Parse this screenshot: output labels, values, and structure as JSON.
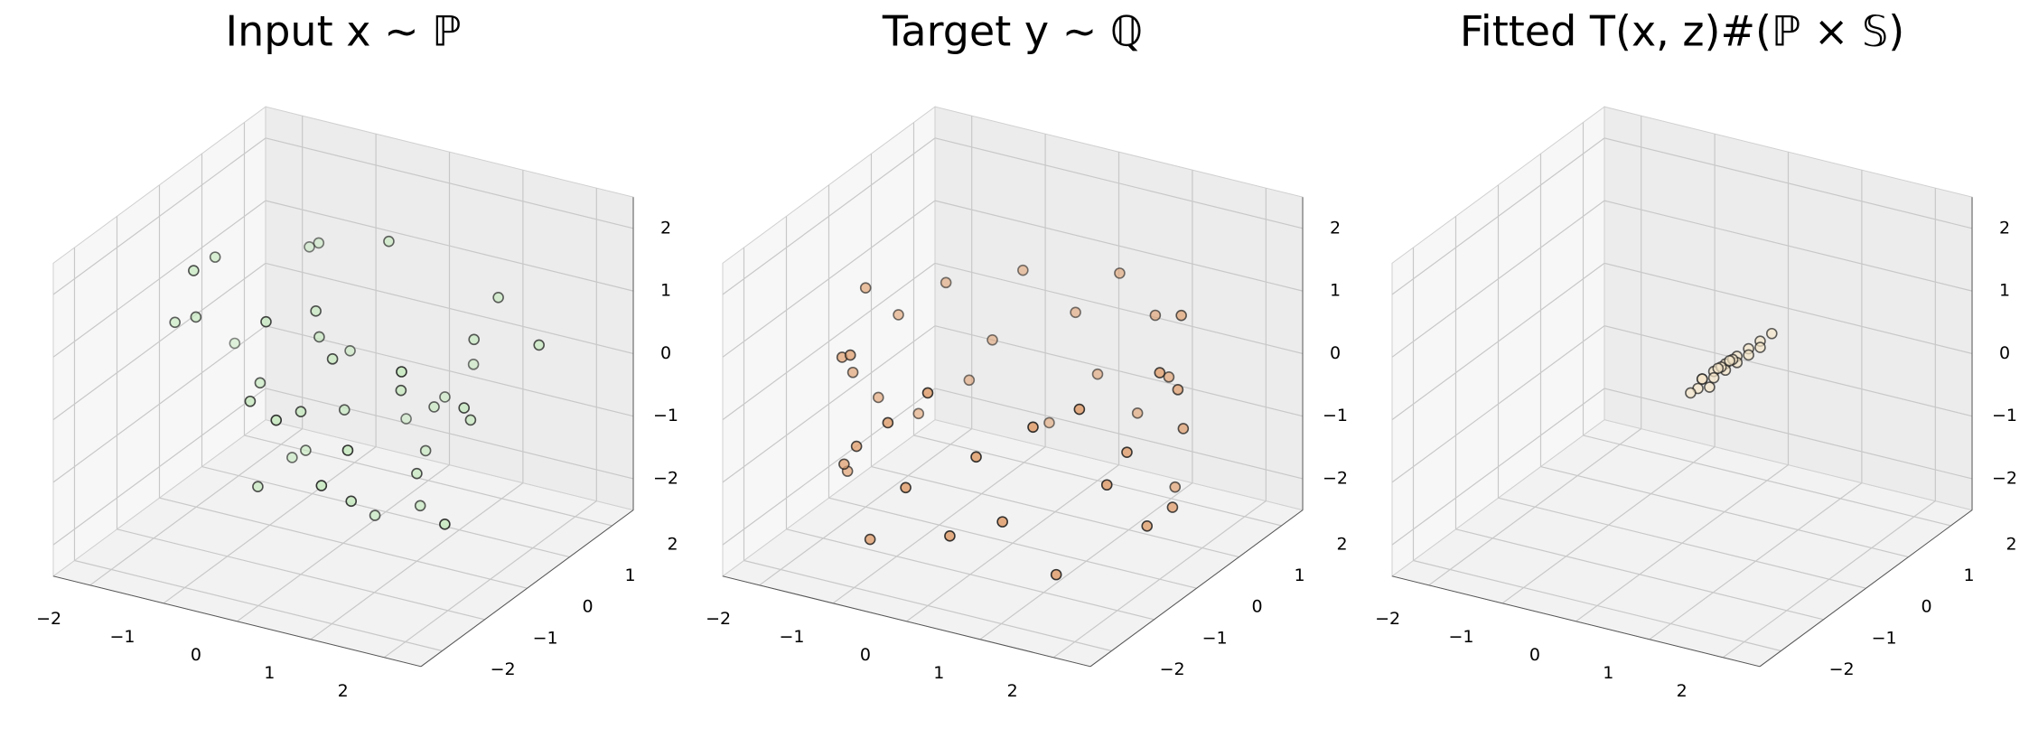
{
  "chart_data": [
    {
      "type": "scatter3d",
      "title": "Input x ∼ ℙ",
      "color": "#c7e9c0",
      "edgecolor": "#1a1a1a",
      "x": [
        -0.5,
        0.8,
        -1.2,
        1.5,
        0.2,
        -0.3,
        1.1,
        -1.8,
        0.6,
        -0.9,
        0.1,
        1.9,
        -0.4,
        0.7,
        -1.5,
        0.3,
        -0.1,
        1.3,
        -0.7,
        0.9,
        -2.0,
        0.4,
        -1.1,
        1.6,
        0.0,
        -0.6,
        1.0,
        -1.4,
        0.5,
        2.2,
        -0.2,
        0.8,
        -0.8,
        1.2,
        -1.6,
        0.2,
        -2.4,
        1.7,
        -0.3,
        0.6
      ],
      "y": [
        0.3,
        -1.2,
        1.5,
        0.4,
        -0.6,
        2.0,
        -1.8,
        0.1,
        1.1,
        -0.4,
        0.9,
        -0.9,
        -1.5,
        0.6,
        1.8,
        -2.1,
        0.2,
        1.4,
        -0.8,
        -0.2,
        -0.5,
        1.7,
        0.7,
        -1.4,
        -1.0,
        1.2,
        0.0,
        -1.1,
        2.2,
        0.8,
        -0.3,
        -1.9,
        0.5,
        1.0,
        -0.7,
        0.4,
        1.6,
        -0.1,
        -1.3,
        0.9
      ],
      "z": [
        0.5,
        -1.0,
        1.2,
        -0.3,
        0.8,
        -1.6,
        0.2,
        1.5,
        -0.7,
        0.0,
        1.9,
        -1.2,
        0.4,
        -2.0,
        0.9,
        0.6,
        -0.5,
        1.1,
        -1.4,
        0.3,
        0.7,
        -0.9,
        -1.8,
        1.4,
        0.1,
        -0.2,
        -1.1,
        2.0,
        -0.6,
        0.9,
        1.3,
        -0.4,
        -1.5,
        0.6,
        1.0,
        -2.2,
        -0.8,
        0.2,
        1.6,
        -1.3
      ],
      "xlim": [
        -2.5,
        2.5
      ],
      "ylim": [
        -2.5,
        2.5
      ],
      "zlim": [
        -2.5,
        2.5
      ],
      "xticks": [
        {
          "value": -2,
          "label": "−2"
        },
        {
          "value": -1,
          "label": "−1"
        },
        0,
        1,
        2
      ],
      "yticks": [
        {
          "value": -2,
          "label": "−2"
        },
        {
          "value": -1,
          "label": "−1"
        },
        0,
        1,
        2
      ],
      "zticks": [
        {
          "value": -2,
          "label": "−2"
        },
        {
          "value": -1,
          "label": "−1"
        },
        0,
        1,
        2
      ]
    },
    {
      "type": "scatter3d",
      "title": "Target y ∼ ℚ",
      "color": "#e0a070",
      "edgecolor": "#1a1a1a",
      "x": [
        2.0,
        2.0,
        1.9,
        1.8,
        1.6,
        1.4,
        1.2,
        0.9,
        0.6,
        0.3,
        0.0,
        -0.3,
        -0.6,
        -0.9,
        -1.2,
        -1.4,
        -1.6,
        -1.8,
        -1.9,
        -2.0,
        -2.0,
        -2.0,
        -1.9,
        -1.8,
        -1.6,
        -1.4,
        -1.2,
        -0.9,
        -0.6,
        -0.3,
        0.0,
        0.3,
        0.6,
        0.9,
        1.2,
        1.4,
        1.6,
        1.8,
        1.9,
        2.0
      ],
      "y": [
        0.0,
        0.3,
        0.6,
        0.9,
        1.2,
        1.4,
        1.6,
        1.8,
        1.9,
        2.0,
        2.0,
        2.0,
        1.9,
        1.8,
        1.6,
        1.4,
        1.2,
        0.9,
        0.6,
        0.3,
        0.0,
        -0.3,
        -0.6,
        -0.9,
        -1.2,
        -1.4,
        -1.6,
        -1.8,
        -1.9,
        -2.0,
        -2.0,
        -2.0,
        -1.9,
        -1.8,
        -1.6,
        -1.4,
        -1.2,
        -0.9,
        -0.6,
        -0.3
      ],
      "z": [
        0.8,
        -1.5,
        0.2,
        -0.6,
        1.0,
        -1.9,
        -0.3,
        0.5,
        -1.2,
        0.9,
        -0.8,
        0.1,
        -1.7,
        0.7,
        -0.4,
        -1.0,
        0.6,
        -1.4,
        0.3,
        -0.9,
        1.0,
        -0.2,
        -1.6,
        0.4,
        -1.1,
        0.8,
        -0.5,
        -1.8,
        0.2,
        -0.7,
        0.9,
        -1.3,
        0.0,
        -1.0,
        0.5,
        -1.9,
        0.7,
        -0.6,
        -0.2,
        -1.5
      ],
      "xlim": [
        -2.5,
        2.5
      ],
      "ylim": [
        -2.5,
        2.5
      ],
      "zlim": [
        -2.5,
        2.5
      ],
      "xticks": [
        {
          "value": -2,
          "label": "−2"
        },
        {
          "value": -1,
          "label": "−1"
        },
        0,
        1,
        2
      ],
      "yticks": [
        {
          "value": -2,
          "label": "−2"
        },
        {
          "value": -1,
          "label": "−1"
        },
        0,
        1,
        2
      ],
      "zticks": [
        {
          "value": -2,
          "label": "−2"
        },
        {
          "value": -1,
          "label": "−1"
        },
        0,
        1,
        2
      ]
    },
    {
      "type": "scatter3d",
      "title": "Fitted T(x, z)#(ℙ × 𝕊)",
      "color": "#f5e6c8",
      "edgecolor": "#1a1a1a",
      "x": [
        0.1,
        0.2,
        0.3,
        0.4,
        0.5,
        0.2,
        0.3,
        0.4,
        0.6,
        0.1,
        0.0,
        0.3,
        0.5,
        0.2,
        0.4,
        0.7,
        0.1,
        0.3,
        0.6,
        0.2
      ],
      "y": [
        0.3,
        0.4,
        0.5,
        0.6,
        0.7,
        0.3,
        0.5,
        0.6,
        0.8,
        0.2,
        0.2,
        0.4,
        0.7,
        0.4,
        0.5,
        0.9,
        0.3,
        0.6,
        0.8,
        0.5
      ],
      "z": [
        0.0,
        0.1,
        0.2,
        0.3,
        0.4,
        -0.1,
        0.1,
        0.2,
        0.5,
        -0.1,
        -0.2,
        0.2,
        0.3,
        0.0,
        0.3,
        0.6,
        0.0,
        0.2,
        0.4,
        0.1
      ],
      "xlim": [
        -2.5,
        2.5
      ],
      "ylim": [
        -2.5,
        2.5
      ],
      "zlim": [
        -2.5,
        2.5
      ],
      "xticks": [
        {
          "value": -2,
          "label": "−2"
        },
        {
          "value": -1,
          "label": "−1"
        },
        0,
        1,
        2
      ],
      "yticks": [
        {
          "value": -2,
          "label": "−2"
        },
        {
          "value": -1,
          "label": "−1"
        },
        0,
        1,
        2
      ],
      "zticks": [
        {
          "value": -2,
          "label": "−2"
        },
        {
          "value": -1,
          "label": "−1"
        },
        0,
        1,
        2
      ]
    }
  ]
}
